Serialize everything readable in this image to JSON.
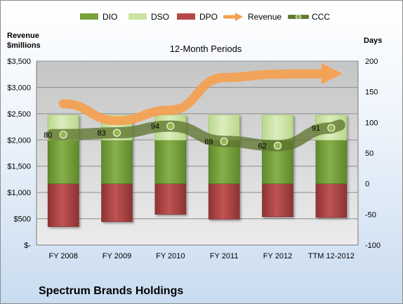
{
  "chart_data": {
    "type": "bar",
    "title": "Spectrum Brands Holdings",
    "subtitle": "12-Month Periods",
    "categories": [
      "FY 2008",
      "FY 2009",
      "FY 2010",
      "FY 2011",
      "FY 2012",
      "TTM 12-2012"
    ],
    "series": [
      {
        "name": "DIO",
        "axis": "right",
        "kind": "stacked-bar",
        "values": [
          71,
          71,
          71,
          71,
          71,
          71
        ]
      },
      {
        "name": "DSO",
        "axis": "right",
        "kind": "stacked-bar",
        "values": [
          41,
          41,
          41,
          41,
          41,
          41
        ]
      },
      {
        "name": "DPO",
        "axis": "right",
        "kind": "stacked-bar",
        "values": [
          -70,
          -62,
          -50,
          -58,
          -54,
          -55
        ]
      },
      {
        "name": "Revenue",
        "axis": "left",
        "kind": "line",
        "values": [
          2688,
          2365,
          2567,
          3187,
          3252,
          3260
        ]
      },
      {
        "name": "CCC",
        "axis": "right",
        "kind": "line",
        "values": [
          80,
          83,
          94,
          69,
          62,
          91
        ]
      }
    ],
    "ccc_labels": [
      "80",
      "83",
      "94",
      "69",
      "62",
      "91"
    ],
    "ylabel_left": [
      "Revenue",
      "$millions"
    ],
    "ylabel_right": "Days",
    "ylim_left": [
      0,
      3500
    ],
    "ylim_right": [
      -100,
      200
    ],
    "yticks_left": [
      "$-",
      "$500",
      "$1,000",
      "$1,500",
      "$2,000",
      "$2,500",
      "$3,000",
      "$3,500"
    ],
    "yticks_right": [
      "-100",
      "-50",
      "0",
      "50",
      "100",
      "150",
      "200"
    ],
    "legend_position": "top",
    "colors": {
      "DIO": "#78a33c",
      "DSO": "#cce3a3",
      "DPO": "#b34a4a",
      "Revenue": "#f5a050",
      "CCC": "#647a34"
    }
  }
}
